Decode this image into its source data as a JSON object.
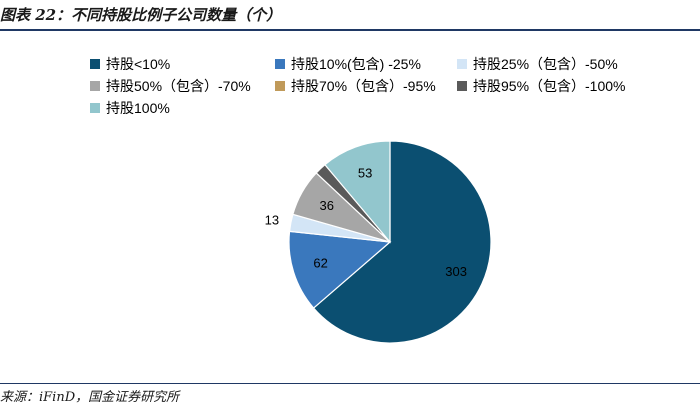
{
  "title": "图表 22：不同持股比例子公司数量（个）",
  "source": "来源：iFinD，国金证券研究所",
  "colors": {
    "title_rule": "#1f3864",
    "label_dark": "#ffffff",
    "label_light": "#000000"
  },
  "chart_data": {
    "type": "pie",
    "title": "图表 22：不同持股比例子公司数量（个）",
    "legend_position": "top",
    "series": [
      {
        "name": "持股<10%",
        "value": 303,
        "color": "#0b4f71"
      },
      {
        "name": "持股10%(包含) -25%",
        "value": 62,
        "color": "#3a78bd"
      },
      {
        "name": "持股25%（包含）-50%",
        "value": 13,
        "color": "#d3e5f6"
      },
      {
        "name": "持股50%（包含）-70%",
        "value": 36,
        "color": "#a6a6a6"
      },
      {
        "name": "持股70%（包含）-95%",
        "value": 0,
        "color": "#c09a5a"
      },
      {
        "name": "持股95%（包含）-100%",
        "value": 9,
        "color": "#5a5a5a"
      },
      {
        "name": "持股100%",
        "value": 53,
        "color": "#92c6cd"
      }
    ]
  }
}
